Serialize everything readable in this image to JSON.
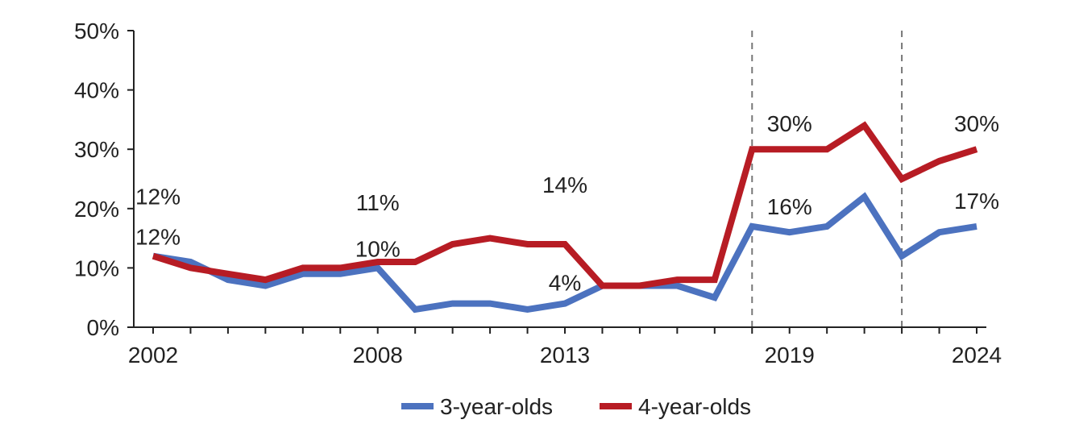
{
  "chart_data": {
    "type": "line",
    "title": "",
    "xlabel": "",
    "ylabel": "",
    "x": [
      2002,
      2003,
      2004,
      2005,
      2006,
      2007,
      2008,
      2009,
      2010,
      2011,
      2012,
      2013,
      2014,
      2015,
      2016,
      2017,
      2018,
      2019,
      2020,
      2021,
      2022,
      2023,
      2024
    ],
    "xlim": [
      2002,
      2024
    ],
    "x_tick_labels": [
      "2002",
      "2008",
      "2013",
      "2019",
      "2024"
    ],
    "x_tick_values": [
      2002,
      2008,
      2013,
      2019,
      2024
    ],
    "ylim": [
      0,
      50
    ],
    "y_tick_values": [
      0,
      10,
      20,
      30,
      40,
      50
    ],
    "y_tick_labels": [
      "0%",
      "10%",
      "20%",
      "30%",
      "40%",
      "50%"
    ],
    "grid": false,
    "legend_position": "bottom",
    "vertical_reference_lines": [
      2018,
      2022
    ],
    "series": [
      {
        "name": "3-year-olds",
        "color": "#4c72bf",
        "values": [
          12,
          11,
          8,
          7,
          9,
          9,
          10,
          3,
          4,
          4,
          3,
          4,
          7,
          7,
          7,
          5,
          17,
          16,
          17,
          22,
          12,
          16,
          17
        ]
      },
      {
        "name": "4-year-olds",
        "color": "#b71c24",
        "values": [
          12,
          10,
          9,
          8,
          10,
          10,
          11,
          11,
          14,
          15,
          14,
          14,
          7,
          7,
          8,
          8,
          30,
          30,
          30,
          34,
          25,
          28,
          30
        ]
      }
    ],
    "annotations": [
      {
        "text": "12%",
        "x": 2002,
        "series": "4-year-olds",
        "placement": "above-high"
      },
      {
        "text": "12%",
        "x": 2002,
        "series": "3-year-olds",
        "placement": "above-low"
      },
      {
        "text": "11%",
        "x": 2008,
        "series": "4-year-olds",
        "placement": "above-high"
      },
      {
        "text": "10%",
        "x": 2008,
        "series": "3-year-olds",
        "placement": "above-low"
      },
      {
        "text": "14%",
        "x": 2013,
        "series": "4-year-olds",
        "placement": "above-high"
      },
      {
        "text": "4%",
        "x": 2013,
        "series": "3-year-olds",
        "placement": "above"
      },
      {
        "text": "30%",
        "x": 2019,
        "series": "4-year-olds",
        "placement": "above"
      },
      {
        "text": "16%",
        "x": 2019,
        "series": "3-year-olds",
        "placement": "above"
      },
      {
        "text": "30%",
        "x": 2024,
        "series": "4-year-olds",
        "placement": "above"
      },
      {
        "text": "17%",
        "x": 2024,
        "series": "3-year-olds",
        "placement": "above"
      }
    ]
  }
}
